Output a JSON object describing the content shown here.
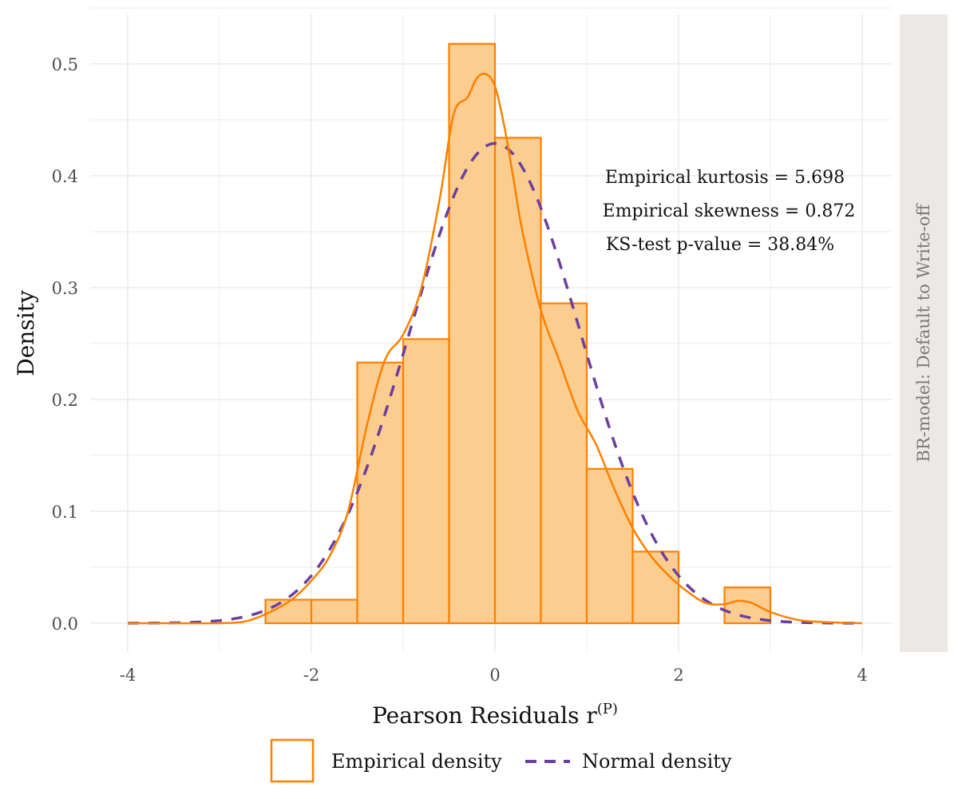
{
  "chart_data": {
    "type": "histogram",
    "xlabel": "Pearson Residuals r",
    "xlabel_superscript": "(P)",
    "ylabel": "Density",
    "xlim": [
      -4,
      4
    ],
    "ylim": [
      0,
      0.5
    ],
    "x_ticks": [
      -4,
      -2,
      0,
      2,
      4
    ],
    "x_tick_labels": [
      "-4",
      "-2",
      "0",
      "2",
      "4"
    ],
    "y_ticks": [
      0.0,
      0.1,
      0.2,
      0.3,
      0.4,
      0.5
    ],
    "y_tick_labels": [
      "0.0",
      "0.1",
      "0.2",
      "0.3",
      "0.4",
      "0.5"
    ],
    "bins": [
      {
        "x0": -2.5,
        "x1": -2.0,
        "density": 0.021
      },
      {
        "x0": -2.0,
        "x1": -1.5,
        "density": 0.021
      },
      {
        "x0": -1.5,
        "x1": -1.0,
        "density": 0.233
      },
      {
        "x0": -1.0,
        "x1": -0.5,
        "density": 0.254
      },
      {
        "x0": -0.5,
        "x1": 0.0,
        "density": 0.518
      },
      {
        "x0": 0.0,
        "x1": 0.5,
        "density": 0.434
      },
      {
        "x0": 0.5,
        "x1": 1.0,
        "density": 0.286
      },
      {
        "x0": 1.0,
        "x1": 1.5,
        "density": 0.138
      },
      {
        "x0": 1.5,
        "x1": 2.0,
        "density": 0.064
      },
      {
        "x0": 2.5,
        "x1": 3.0,
        "density": 0.032
      }
    ],
    "empirical_density": {
      "x": [
        -4.0,
        -3.5,
        -3.0,
        -2.7,
        -2.4,
        -2.2,
        -2.0,
        -1.8,
        -1.6,
        -1.4,
        -1.2,
        -1.0,
        -0.8,
        -0.6,
        -0.45,
        -0.3,
        -0.2,
        -0.1,
        0.0,
        0.1,
        0.2,
        0.3,
        0.5,
        0.7,
        0.9,
        1.1,
        1.3,
        1.5,
        1.7,
        1.9,
        2.1,
        2.3,
        2.5,
        2.65,
        2.8,
        3.0,
        3.3,
        3.6,
        4.0
      ],
      "y": [
        0.0,
        0.0,
        0.0,
        0.002,
        0.012,
        0.022,
        0.038,
        0.06,
        0.1,
        0.175,
        0.235,
        0.258,
        0.3,
        0.38,
        0.455,
        0.47,
        0.487,
        0.491,
        0.48,
        0.445,
        0.398,
        0.35,
        0.28,
        0.235,
        0.19,
        0.16,
        0.12,
        0.085,
        0.06,
        0.042,
        0.028,
        0.018,
        0.017,
        0.02,
        0.018,
        0.01,
        0.003,
        0.001,
        0.0
      ]
    },
    "normal_density": {
      "mean": 0.0,
      "sd": 0.93
    },
    "annotations": [
      "Empirical kurtosis = 5.698",
      "Empirical skewness = 0.872",
      "KS-test p-value = 38.84%"
    ],
    "facet_label": "BR-model: Default to Write-off",
    "legend": [
      {
        "label": "Empirical density",
        "color": "#ff8000",
        "fill": "#fbcd8e",
        "style": "box-solid"
      },
      {
        "label": "Normal density",
        "color": "#6b3fa0",
        "style": "dashed"
      }
    ],
    "colors": {
      "bar_fill": "#fbcd8e",
      "bar_stroke": "#ff8000",
      "empirical_line": "#ff8000",
      "normal_line": "#6b3fa0",
      "grid": "#ebebeb",
      "strip_bg": "#ece8e6"
    }
  }
}
